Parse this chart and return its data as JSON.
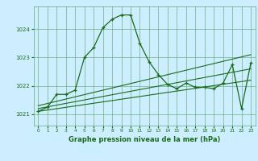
{
  "title": "Graphe pression niveau de la mer (hPa)",
  "bg_color": "#cceeff",
  "grid_color": "#66aa77",
  "line_color": "#1a6b1a",
  "xlim": [
    -0.5,
    23.5
  ],
  "ylim": [
    1020.6,
    1024.8
  ],
  "yticks": [
    1021,
    1022,
    1023,
    1024
  ],
  "xticks": [
    0,
    1,
    2,
    3,
    4,
    5,
    6,
    7,
    8,
    9,
    10,
    11,
    12,
    13,
    14,
    15,
    16,
    17,
    18,
    19,
    20,
    21,
    22,
    23
  ],
  "series_main": {
    "x": [
      0,
      1,
      2,
      3,
      4,
      5,
      6,
      7,
      8,
      9,
      10,
      11,
      12,
      13,
      14,
      15,
      16,
      17,
      18,
      19,
      20,
      21,
      22,
      23
    ],
    "y": [
      1021.1,
      1021.25,
      1021.7,
      1021.7,
      1021.85,
      1023.0,
      1023.35,
      1024.05,
      1024.35,
      1024.5,
      1024.5,
      1023.5,
      1022.85,
      1022.4,
      1022.05,
      1021.9,
      1022.1,
      1021.95,
      1021.95,
      1021.9,
      1022.1,
      1022.75,
      1021.2,
      1022.8
    ]
  },
  "series_flat1": {
    "x": [
      0,
      23
    ],
    "y": [
      1021.1,
      1022.2
    ]
  },
  "series_flat2": {
    "x": [
      0,
      23
    ],
    "y": [
      1021.2,
      1022.6
    ]
  },
  "series_flat3": {
    "x": [
      0,
      23
    ],
    "y": [
      1021.3,
      1023.1
    ]
  }
}
